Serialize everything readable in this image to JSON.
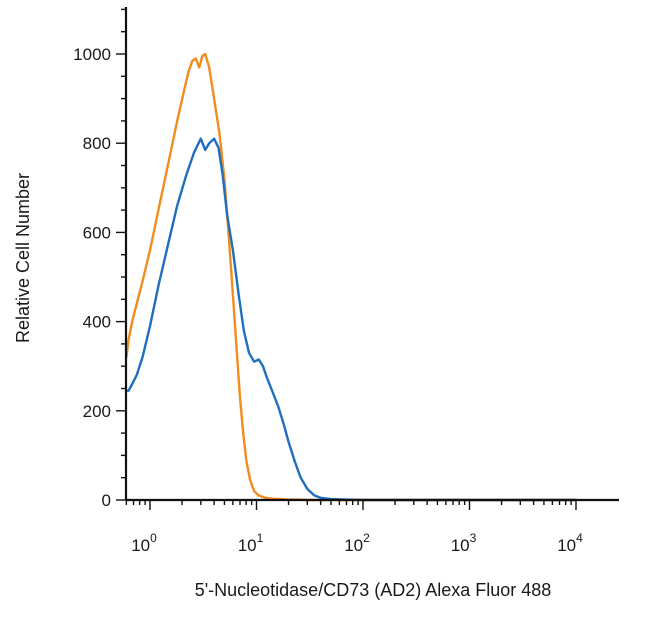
{
  "chart_data": {
    "type": "line",
    "title": "",
    "xlabel": "5'-Nucleotidase/CD73 (AD2) Alexa Fluor 488",
    "ylabel": "Relative Cell Number",
    "x_scale": "log",
    "xlim": [
      0.6,
      10000
    ],
    "ylim": [
      0,
      1100
    ],
    "x_ticks": [
      {
        "value": 1,
        "base": "10",
        "exp": "0"
      },
      {
        "value": 10,
        "base": "10",
        "exp": "1"
      },
      {
        "value": 100,
        "base": "10",
        "exp": "2"
      },
      {
        "value": 1000,
        "base": "10",
        "exp": "3"
      },
      {
        "value": 10000,
        "base": "10",
        "exp": "4"
      }
    ],
    "y_ticks": [
      "0",
      "200",
      "400",
      "600",
      "800",
      "1000"
    ],
    "grid": false,
    "legend": "none",
    "series": [
      {
        "color": "#f28c1e",
        "x": [
          0.6,
          0.63,
          0.68,
          0.75,
          0.85,
          1.0,
          1.2,
          1.5,
          1.8,
          2.1,
          2.3,
          2.5,
          2.7,
          2.9,
          3.1,
          3.3,
          3.6,
          4.0,
          4.5,
          5.0,
          5.5,
          6.0,
          6.5,
          7.0,
          7.5,
          8.0,
          8.7,
          9.5,
          10.5,
          12,
          14,
          17,
          20,
          25,
          30,
          40,
          60,
          100,
          200,
          500,
          1000,
          3000,
          10000
        ],
        "y": [
          320,
          360,
          400,
          440,
          490,
          560,
          650,
          760,
          850,
          920,
          960,
          985,
          990,
          970,
          995,
          1000,
          970,
          900,
          820,
          720,
          590,
          460,
          340,
          230,
          150,
          90,
          45,
          20,
          10,
          5,
          3,
          2,
          1,
          1,
          0,
          0,
          0,
          0,
          0,
          0,
          0,
          0,
          0
        ]
      },
      {
        "color": "#1f6fbf",
        "x": [
          0.6,
          0.63,
          0.68,
          0.75,
          0.85,
          1.0,
          1.2,
          1.5,
          1.8,
          2.2,
          2.6,
          3.0,
          3.3,
          3.6,
          4.0,
          4.4,
          4.8,
          5.3,
          6.0,
          6.8,
          7.6,
          8.5,
          9.5,
          10.5,
          11.5,
          12.5,
          14,
          16,
          18,
          20,
          23,
          26,
          30,
          35,
          40,
          50,
          70,
          100,
          300,
          1000,
          3000,
          10000
        ],
        "y": [
          245,
          245,
          260,
          280,
          320,
          390,
          480,
          580,
          660,
          730,
          780,
          810,
          785,
          800,
          810,
          790,
          730,
          640,
          560,
          460,
          380,
          330,
          310,
          315,
          300,
          275,
          245,
          210,
          170,
          130,
          85,
          50,
          25,
          10,
          5,
          2,
          1,
          0,
          0,
          0,
          0,
          0
        ]
      }
    ]
  }
}
